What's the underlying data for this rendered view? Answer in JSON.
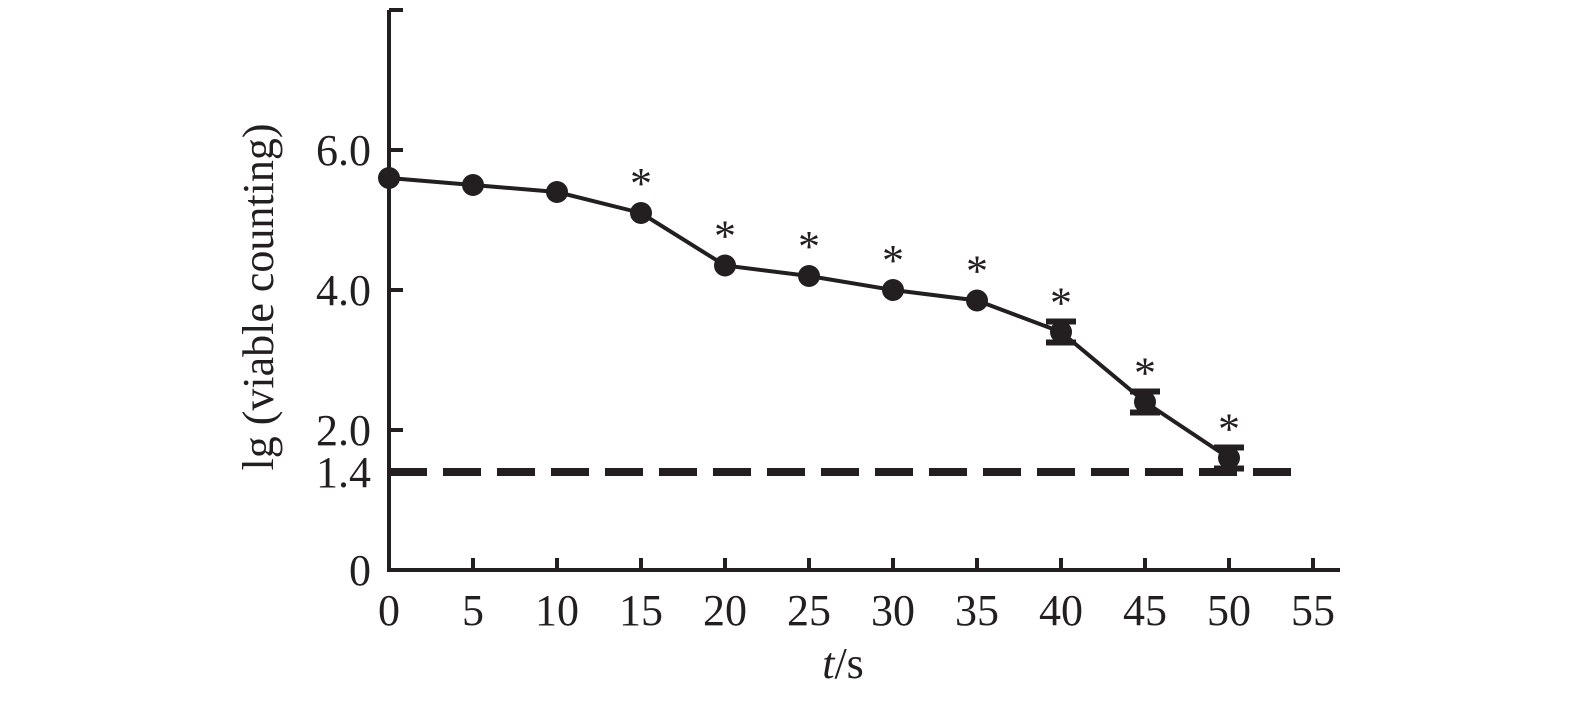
{
  "chart_data": {
    "type": "line",
    "xlabel_italic": "t",
    "xlabel_rest": "/s",
    "ylabel": "lg (viable counting)",
    "x_ticks": [
      "0",
      "5",
      "10",
      "15",
      "20",
      "25",
      "30",
      "35",
      "40",
      "45",
      "50",
      "55"
    ],
    "y_ticks": [
      {
        "label": "0",
        "value": 0
      },
      {
        "label": "1.4",
        "value": 1.4
      },
      {
        "label": "2.0",
        "value": 2.0
      },
      {
        "label": "4.0",
        "value": 4.0
      },
      {
        "label": "6.0",
        "value": 6.0
      }
    ],
    "xlim": [
      0,
      55
    ],
    "ylim": [
      0,
      8
    ],
    "series": [
      {
        "x": [
          0,
          5,
          10,
          15,
          20,
          25,
          30,
          35,
          40,
          45,
          50
        ],
        "y": [
          5.6,
          5.5,
          5.4,
          5.1,
          4.35,
          4.2,
          4.0,
          3.85,
          3.4,
          2.4,
          1.6
        ],
        "error": [
          0,
          0,
          0,
          0,
          0,
          0,
          0,
          0,
          0.15,
          0.15,
          0.15
        ],
        "significant": [
          false,
          false,
          false,
          true,
          true,
          true,
          true,
          true,
          true,
          true,
          true
        ]
      }
    ],
    "significance_marker": "*",
    "threshold": {
      "value": 1.4,
      "style": "dashed"
    }
  }
}
